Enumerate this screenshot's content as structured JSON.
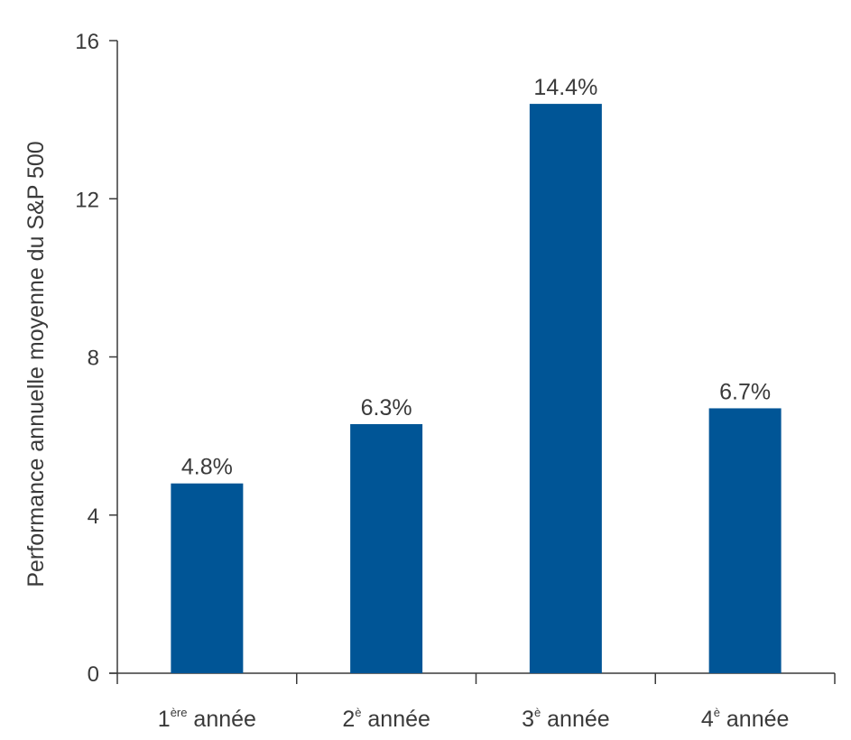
{
  "chart_data": {
    "type": "bar",
    "ylabel": "Performance annuelle moyenne du S&P 500",
    "xlabel": "",
    "ylim": [
      0,
      16
    ],
    "yticks": [
      0,
      4,
      8,
      12,
      16
    ],
    "grid": false,
    "categories": [
      {
        "num": "1",
        "sup": "ère",
        "word": " année"
      },
      {
        "num": "2",
        "sup": "è",
        "word": " année"
      },
      {
        "num": "3",
        "sup": "è",
        "word": " année"
      },
      {
        "num": "4",
        "sup": "è",
        "word": " année"
      }
    ],
    "values": [
      4.8,
      6.3,
      14.4,
      6.7
    ],
    "data_labels": [
      "4.8%",
      "6.3%",
      "14.4%",
      "6.7%"
    ],
    "bar_color": "#005596",
    "axis_color": "#3a3a3a"
  }
}
